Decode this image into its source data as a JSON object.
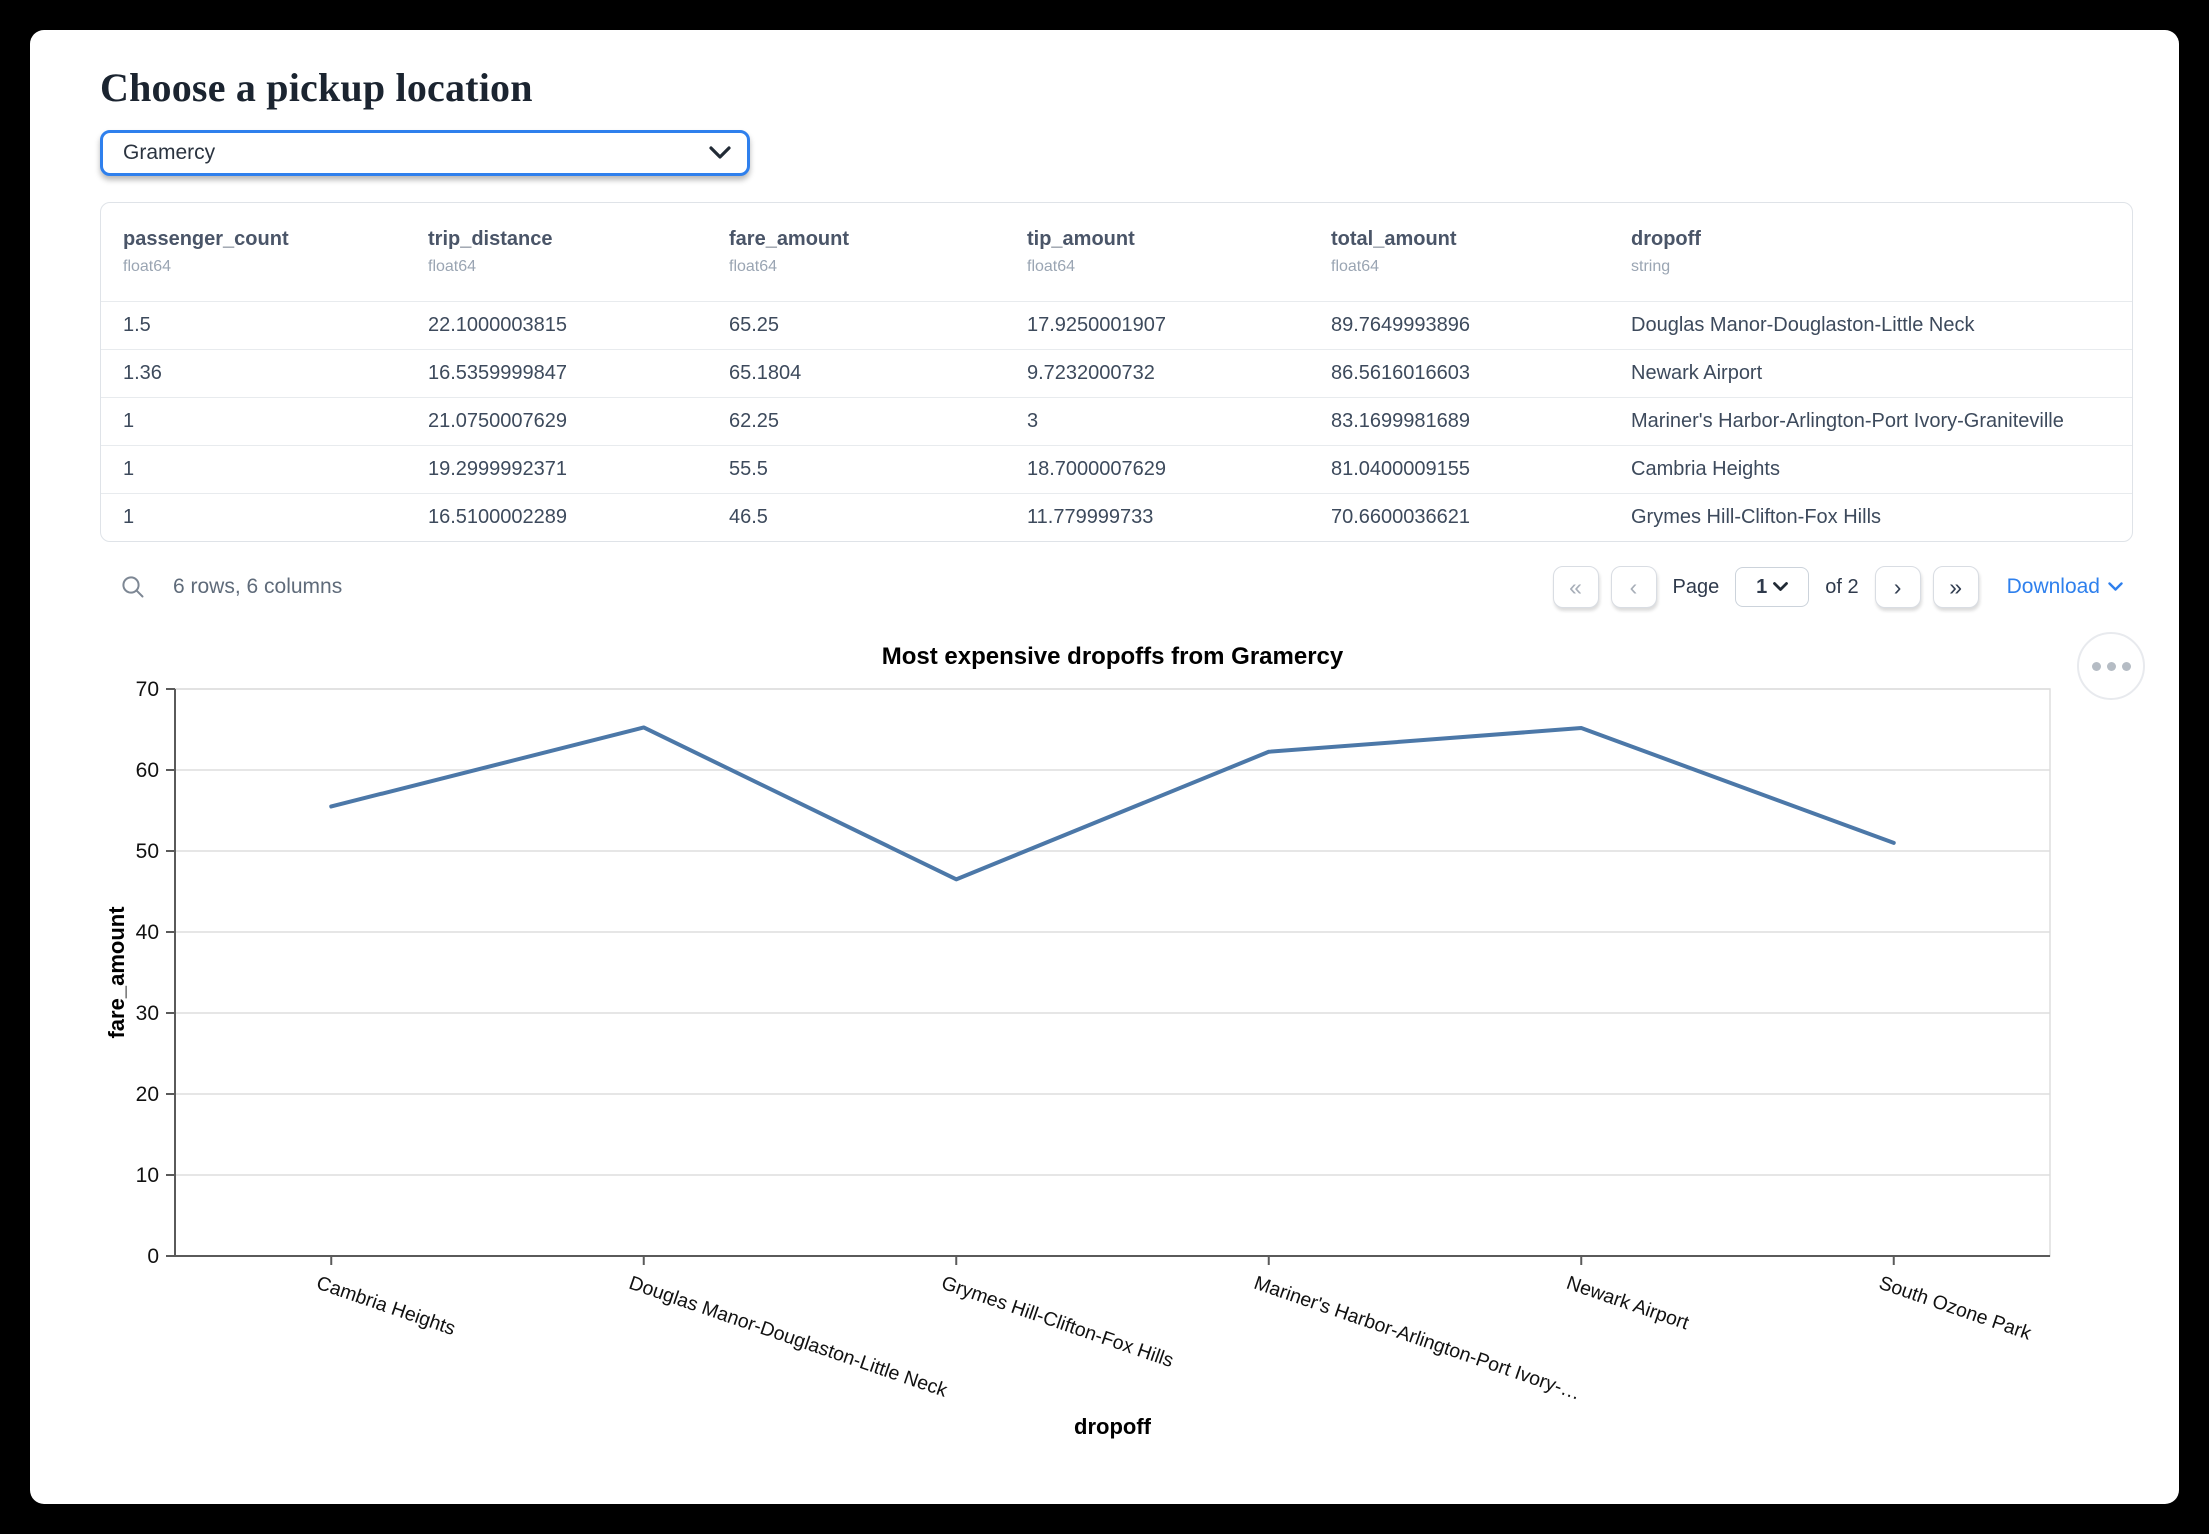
{
  "header": {
    "title": "Choose a pickup location"
  },
  "pickup_select": {
    "value": "Gramercy",
    "icon": "chevron-down"
  },
  "table": {
    "columns": [
      {
        "name": "passenger_count",
        "type": "float64"
      },
      {
        "name": "trip_distance",
        "type": "float64"
      },
      {
        "name": "fare_amount",
        "type": "float64"
      },
      {
        "name": "tip_amount",
        "type": "float64"
      },
      {
        "name": "total_amount",
        "type": "float64"
      },
      {
        "name": "dropoff",
        "type": "string"
      }
    ],
    "rows": [
      [
        "1.5",
        "22.1000003815",
        "65.25",
        "17.9250001907",
        "89.7649993896",
        "Douglas Manor-Douglaston-Little Neck"
      ],
      [
        "1.36",
        "16.5359999847",
        "65.1804",
        "9.7232000732",
        "86.5616016603",
        "Newark Airport"
      ],
      [
        "1",
        "21.0750007629",
        "62.25",
        "3",
        "83.1699981689",
        "Mariner's Harbor-Arlington-Port Ivory-Graniteville"
      ],
      [
        "1",
        "19.2999992371",
        "55.5",
        "18.7000007629",
        "81.0400009155",
        "Cambria Heights"
      ],
      [
        "1",
        "16.5100002289",
        "46.5",
        "11.779999733",
        "70.6600036621",
        "Grymes Hill-Clifton-Fox Hills"
      ]
    ],
    "summary": "6 rows, 6 columns"
  },
  "pagination": {
    "first_icon": "«",
    "prev_icon": "‹",
    "next_icon": "›",
    "last_icon": "»",
    "page_label": "Page",
    "current_page": "1",
    "of_label": "of 2",
    "download_label": "Download"
  },
  "chart_data": {
    "type": "line",
    "title": "Most expensive dropoffs from Gramercy",
    "categories": [
      "Cambria Heights",
      "Douglas Manor-Douglaston-Little Neck",
      "Grymes Hill-Clifton-Fox Hills",
      "Mariner's Harbor-Arlington-Port Ivory-…",
      "Newark Airport",
      "South Ozone Park"
    ],
    "values": [
      55.5,
      65.25,
      46.5,
      62.25,
      65.1804,
      51
    ],
    "xlabel": "dropoff",
    "ylabel": "fare_amount",
    "ylim": [
      0,
      70
    ],
    "yticks": [
      0,
      10,
      20,
      30,
      40,
      50,
      60,
      70
    ],
    "grid": true,
    "legend": false,
    "label_angle": 19,
    "line_color": "#4c78a8",
    "grid_color": "#dddddd",
    "axis_color": "#5a5a5a"
  },
  "colors": {
    "frame": "#000000",
    "accent_blue": "#2f80ed",
    "header_text": "#4a5568",
    "cell_text": "#3d4a5c"
  }
}
